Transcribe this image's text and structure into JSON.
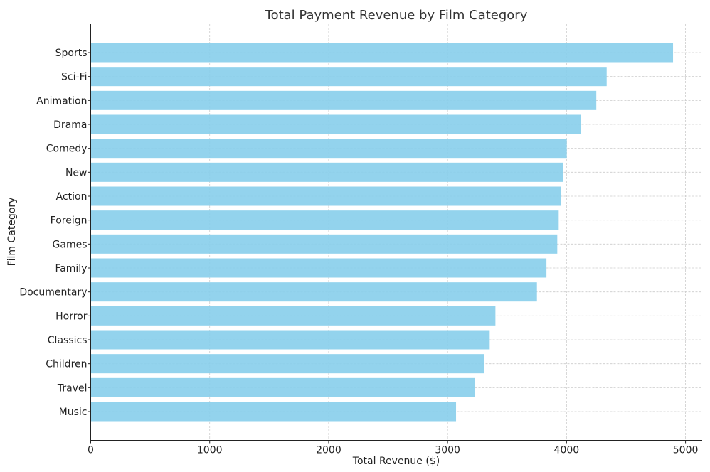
{
  "chart_data": {
    "type": "bar",
    "orientation": "horizontal",
    "title": "Total Payment Revenue by Film Category",
    "xlabel": "Total Revenue ($)",
    "ylabel": "Film Category",
    "categories": [
      "Sports",
      "Sci-Fi",
      "Animation",
      "Drama",
      "Comedy",
      "New",
      "Action",
      "Foreign",
      "Games",
      "Family",
      "Documentary",
      "Horror",
      "Classics",
      "Children",
      "Travel",
      "Music"
    ],
    "values": [
      4895,
      4337,
      4250,
      4122,
      4002,
      3968,
      3955,
      3934,
      3922,
      3831,
      3751,
      3402,
      3354,
      3309,
      3228,
      3071
    ],
    "xlim": [
      0,
      5140
    ],
    "xticks": [
      0,
      1000,
      2000,
      3000,
      4000,
      5000
    ],
    "grid": true,
    "bar_color": "#87ceeb"
  }
}
